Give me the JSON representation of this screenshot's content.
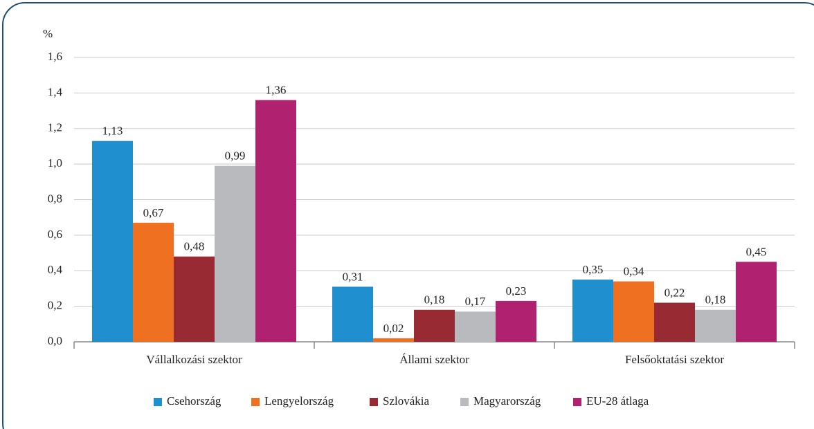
{
  "chart_data": {
    "type": "bar",
    "y_axis_label": "%",
    "categories": [
      "Vállalkozási szektor",
      "Állami szektor",
      "Felsőoktatási szektor"
    ],
    "series": [
      {
        "name": "Csehország",
        "color": "#1f8fd0",
        "values": [
          1.13,
          0.31,
          0.35
        ],
        "value_labels": [
          "1,13",
          "0,31",
          "0,35"
        ]
      },
      {
        "name": "Lengyelország",
        "color": "#f07022",
        "values": [
          0.67,
          0.02,
          0.34
        ],
        "value_labels": [
          "0,67",
          "0,02",
          "0,34"
        ]
      },
      {
        "name": "Szlovákia",
        "color": "#972a33",
        "values": [
          0.48,
          0.18,
          0.22
        ],
        "value_labels": [
          "0,48",
          "0,18",
          "0,22"
        ]
      },
      {
        "name": "Magyarország",
        "color": "#b9babd",
        "values": [
          0.99,
          0.17,
          0.18
        ],
        "value_labels": [
          "0,99",
          "0,17",
          "0,18"
        ]
      },
      {
        "name": "EU-28 átlaga",
        "color": "#b0226f",
        "values": [
          1.36,
          0.23,
          0.45
        ],
        "value_labels": [
          "1,36",
          "0,23",
          "0,45"
        ]
      }
    ],
    "ylim": [
      0,
      1.6
    ],
    "yticks": [
      {
        "value": 0,
        "label": "0,0"
      },
      {
        "value": 0.2,
        "label": "0,2"
      },
      {
        "value": 0.4,
        "label": "0,4"
      },
      {
        "value": 0.6,
        "label": "0,6"
      },
      {
        "value": 0.8,
        "label": "0,8"
      },
      {
        "value": 1.0,
        "label": "1,0"
      },
      {
        "value": 1.2,
        "label": "1,2"
      },
      {
        "value": 1.4,
        "label": "1,4"
      },
      {
        "value": 1.6,
        "label": "1,6"
      }
    ],
    "grid": true,
    "legend": "bottom"
  }
}
